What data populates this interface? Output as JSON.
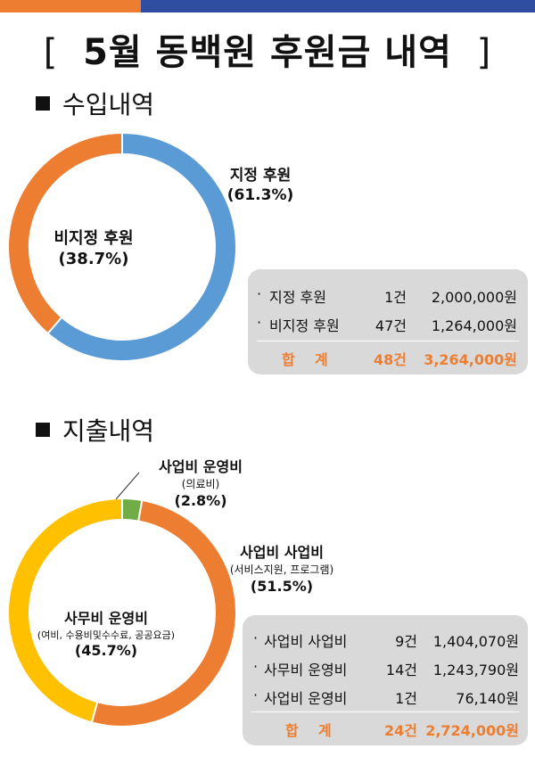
{
  "colors": {
    "orange": "#ed7d31",
    "navy": "#2f4ea2",
    "blue": "#5b9bd5",
    "yellow": "#ffc000",
    "green": "#70ad47",
    "box": "#d9d9d9"
  },
  "title": {
    "open": "[",
    "text": "5월 동백원 후원금 내역",
    "close": "]"
  },
  "income": {
    "heading": "수입내역",
    "chart_data": {
      "type": "pie",
      "title": "수입내역",
      "categories": [
        "지정 후원",
        "비지정 후원"
      ],
      "values": [
        61.3,
        38.7
      ],
      "unit": "%"
    },
    "labels": {
      "designated": {
        "name": "지정 후원",
        "pct": "(61.3%)"
      },
      "undesignated": {
        "name": "비지정 후원",
        "pct": "(38.7%)"
      }
    },
    "table": {
      "rows": [
        {
          "bullet": "·",
          "name": "지정 후원",
          "count": "1건",
          "amount": "2,000,000원"
        },
        {
          "bullet": "·",
          "name": "비지정 후원",
          "count": "47건",
          "amount": "1,264,000원"
        }
      ],
      "total": {
        "label": "합    계",
        "count": "48건",
        "amount": "3,264,000원"
      }
    }
  },
  "expense": {
    "heading": "지출내역",
    "chart_data": {
      "type": "pie",
      "title": "지출내역",
      "categories": [
        "사업비 운영비",
        "사업비 사업비",
        "사무비 운영비"
      ],
      "values": [
        2.8,
        51.5,
        45.7
      ],
      "unit": "%"
    },
    "labels": {
      "project_ops": {
        "name": "사업비 운영비",
        "detail": "(의료비)",
        "pct": "(2.8%)"
      },
      "project_biz": {
        "name": "사업비 사업비",
        "detail": "(서비스지원, 프로그램)",
        "pct": "(51.5%)"
      },
      "office_ops": {
        "name": "사무비 운영비",
        "detail": "(여비, 수용비및수수료, 공공요금)",
        "pct": "(45.7%)"
      }
    },
    "table": {
      "rows": [
        {
          "bullet": "·",
          "name": "사업비 사업비",
          "count": "9건",
          "amount": "1,404,070원"
        },
        {
          "bullet": "·",
          "name": "사무비 운영비",
          "count": "14건",
          "amount": "1,243,790원"
        },
        {
          "bullet": "·",
          "name": "사업비 운영비",
          "count": "1건",
          "amount": "76,140원"
        }
      ],
      "total": {
        "label": "합    계",
        "count": "24건",
        "amount": "2,724,000원"
      }
    }
  }
}
